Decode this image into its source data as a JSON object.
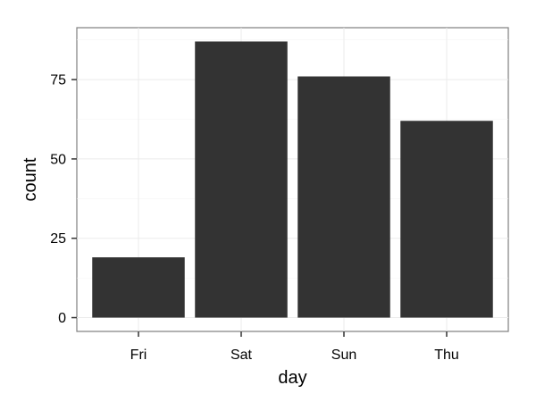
{
  "chart_data": {
    "type": "bar",
    "categories": [
      "Fri",
      "Sat",
      "Sun",
      "Thu"
    ],
    "values": [
      19,
      87,
      76,
      62
    ],
    "title": "",
    "xlabel": "day",
    "ylabel": "count",
    "ylim": [
      -4.35,
      91.35
    ],
    "yticks": [
      0,
      25,
      50,
      75
    ],
    "grid": true,
    "colors": {
      "bar": "#333333",
      "panel_border": "#7f7f7f",
      "grid": "#ebebeb"
    }
  }
}
